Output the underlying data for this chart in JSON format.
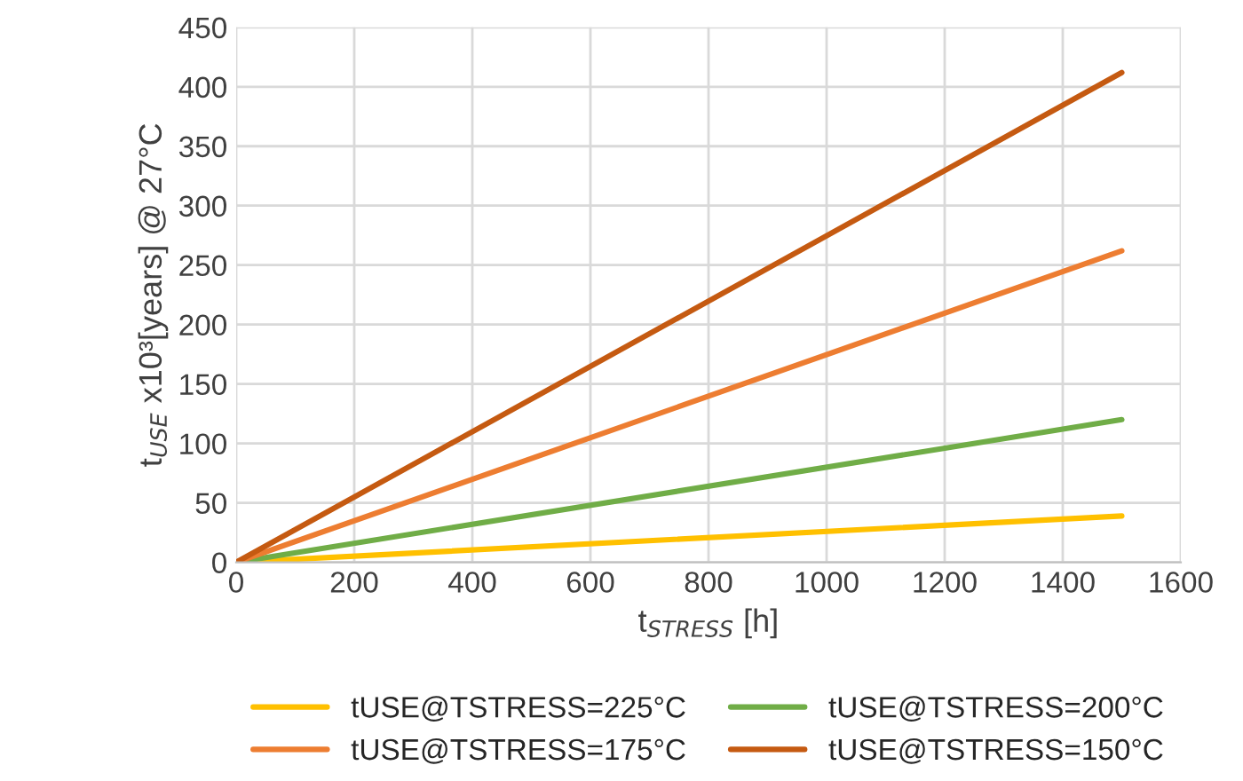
{
  "chart_data": {
    "type": "line",
    "xlabel": "t$_{STRESS}$ [h]",
    "ylabel": "t$_{USE}$ x10³[years] @ 27°C",
    "x": [
      0,
      1500
    ],
    "series": [
      {
        "name": "tUSE@TSTRESS=225°C",
        "color": "#ffc000",
        "values": [
          0,
          39
        ]
      },
      {
        "name": "tUSE@TSTRESS=200°C",
        "color": "#70ad47",
        "values": [
          0,
          120
        ]
      },
      {
        "name": "tUSE@TSTRESS=175°C",
        "color": "#ed7d31",
        "values": [
          0,
          262
        ]
      },
      {
        "name": "tUSE@TSTRESS=150°C",
        "color": "#c55a11",
        "values": [
          0,
          412
        ]
      }
    ],
    "xlim": [
      0,
      1600
    ],
    "xticks": [
      0,
      200,
      400,
      600,
      800,
      1000,
      1200,
      1400,
      1600
    ],
    "ylim": [
      0,
      450
    ],
    "yticks": [
      0,
      50,
      100,
      150,
      200,
      250,
      300,
      350,
      400,
      450
    ],
    "grid": true,
    "legend": "bottom",
    "marker": "none",
    "line_style": "solid"
  }
}
